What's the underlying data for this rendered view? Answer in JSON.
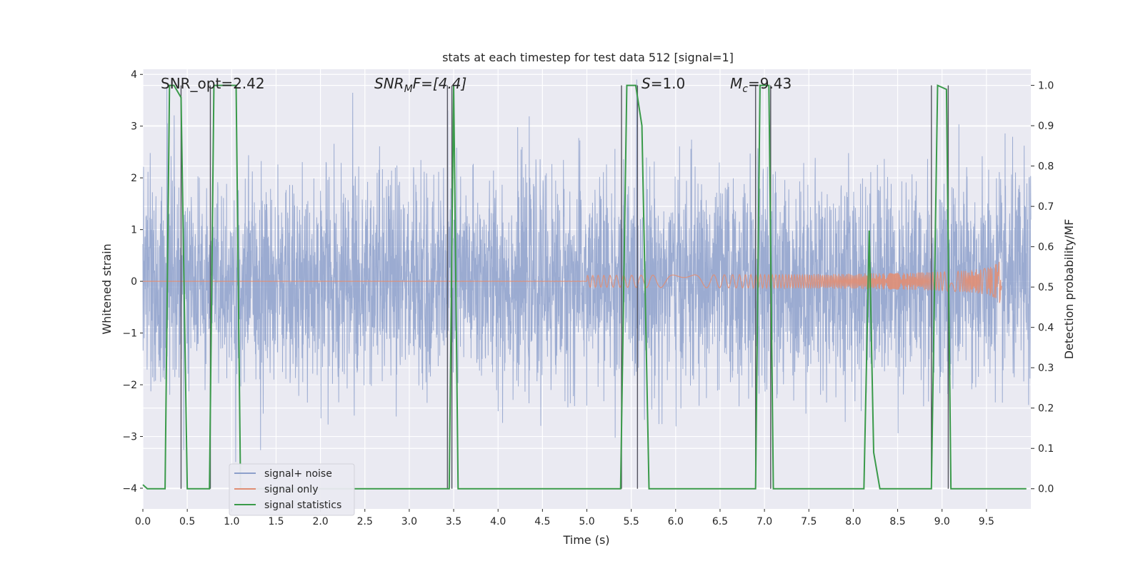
{
  "chart_data": {
    "type": "line",
    "title": "stats at each timestep for test data 512 [signal=1]",
    "xlabel": "Time (s)",
    "ylabel_left": "Whitened strain",
    "ylabel_right": "Detection probability/MF",
    "xlim": [
      0.0,
      10.0
    ],
    "ylim_left": [
      -4.4,
      4.1
    ],
    "ylim_right": [
      -0.05,
      1.04
    ],
    "xticks": [
      "0.0",
      "0.5",
      "1.0",
      "1.5",
      "2.0",
      "2.5",
      "3.0",
      "3.5",
      "4.0",
      "4.5",
      "5.0",
      "5.5",
      "6.0",
      "6.5",
      "7.0",
      "7.5",
      "8.0",
      "8.5",
      "9.0",
      "9.5"
    ],
    "yticks_left": [
      "−4",
      "−3",
      "−2",
      "−1",
      "0",
      "1",
      "2",
      "3",
      "4"
    ],
    "yticks_right": [
      "0.0",
      "0.1",
      "0.2",
      "0.3",
      "0.4",
      "0.5",
      "0.6",
      "0.7",
      "0.8",
      "0.9",
      "1.0"
    ],
    "grid": true,
    "legend_position": "lower-left",
    "annotations": {
      "snr_opt": "SNR_opt=2.42",
      "snr_mf_base": "SNR",
      "snr_mf_sub": "M",
      "snr_mf_rest": "F=[4.4]",
      "s_var": "S",
      "s_rest": "=1.0",
      "mc_var": "M",
      "mc_sub": "c",
      "mc_rest": "=9.43"
    },
    "series": [
      {
        "name": "signal+ noise",
        "color": "#8da0cb",
        "noise_level": 1.0,
        "x_range": [
          0.0,
          10.0
        ]
      },
      {
        "name": "signal only",
        "color": "#e08e74",
        "chirp_end": 9.67,
        "chirp_peak": 0.45
      },
      {
        "name": "signal statistics",
        "color": "#3a9a4a",
        "x": [
          0.0,
          0.05,
          0.25,
          0.3,
          0.35,
          0.43,
          0.5,
          0.75,
          0.8,
          0.85,
          1.05,
          1.1,
          3.45,
          3.5,
          3.55,
          5.38,
          5.45,
          5.55,
          5.62,
          5.7,
          6.9,
          6.95,
          7.05,
          7.1,
          8.12,
          8.18,
          8.23,
          8.3,
          8.88,
          8.95,
          9.05,
          9.1,
          9.95
        ],
        "values": [
          0.01,
          0.0,
          0.0,
          1.0,
          1.0,
          0.97,
          0.0,
          0.0,
          1.0,
          1.0,
          1.0,
          0.0,
          0.0,
          1.0,
          0.0,
          0.0,
          1.0,
          1.0,
          0.9,
          0.0,
          0.0,
          1.0,
          1.0,
          0.0,
          0.0,
          0.64,
          0.09,
          0.0,
          0.0,
          1.0,
          0.99,
          0.0,
          0.0
        ]
      }
    ],
    "vertical_lines": [
      0.43,
      0.76,
      3.43,
      3.48,
      5.39,
      5.57,
      6.9,
      7.07,
      8.88,
      9.07
    ]
  },
  "colors": {
    "background": "#eaeaf2",
    "grid": "#ffffff"
  }
}
